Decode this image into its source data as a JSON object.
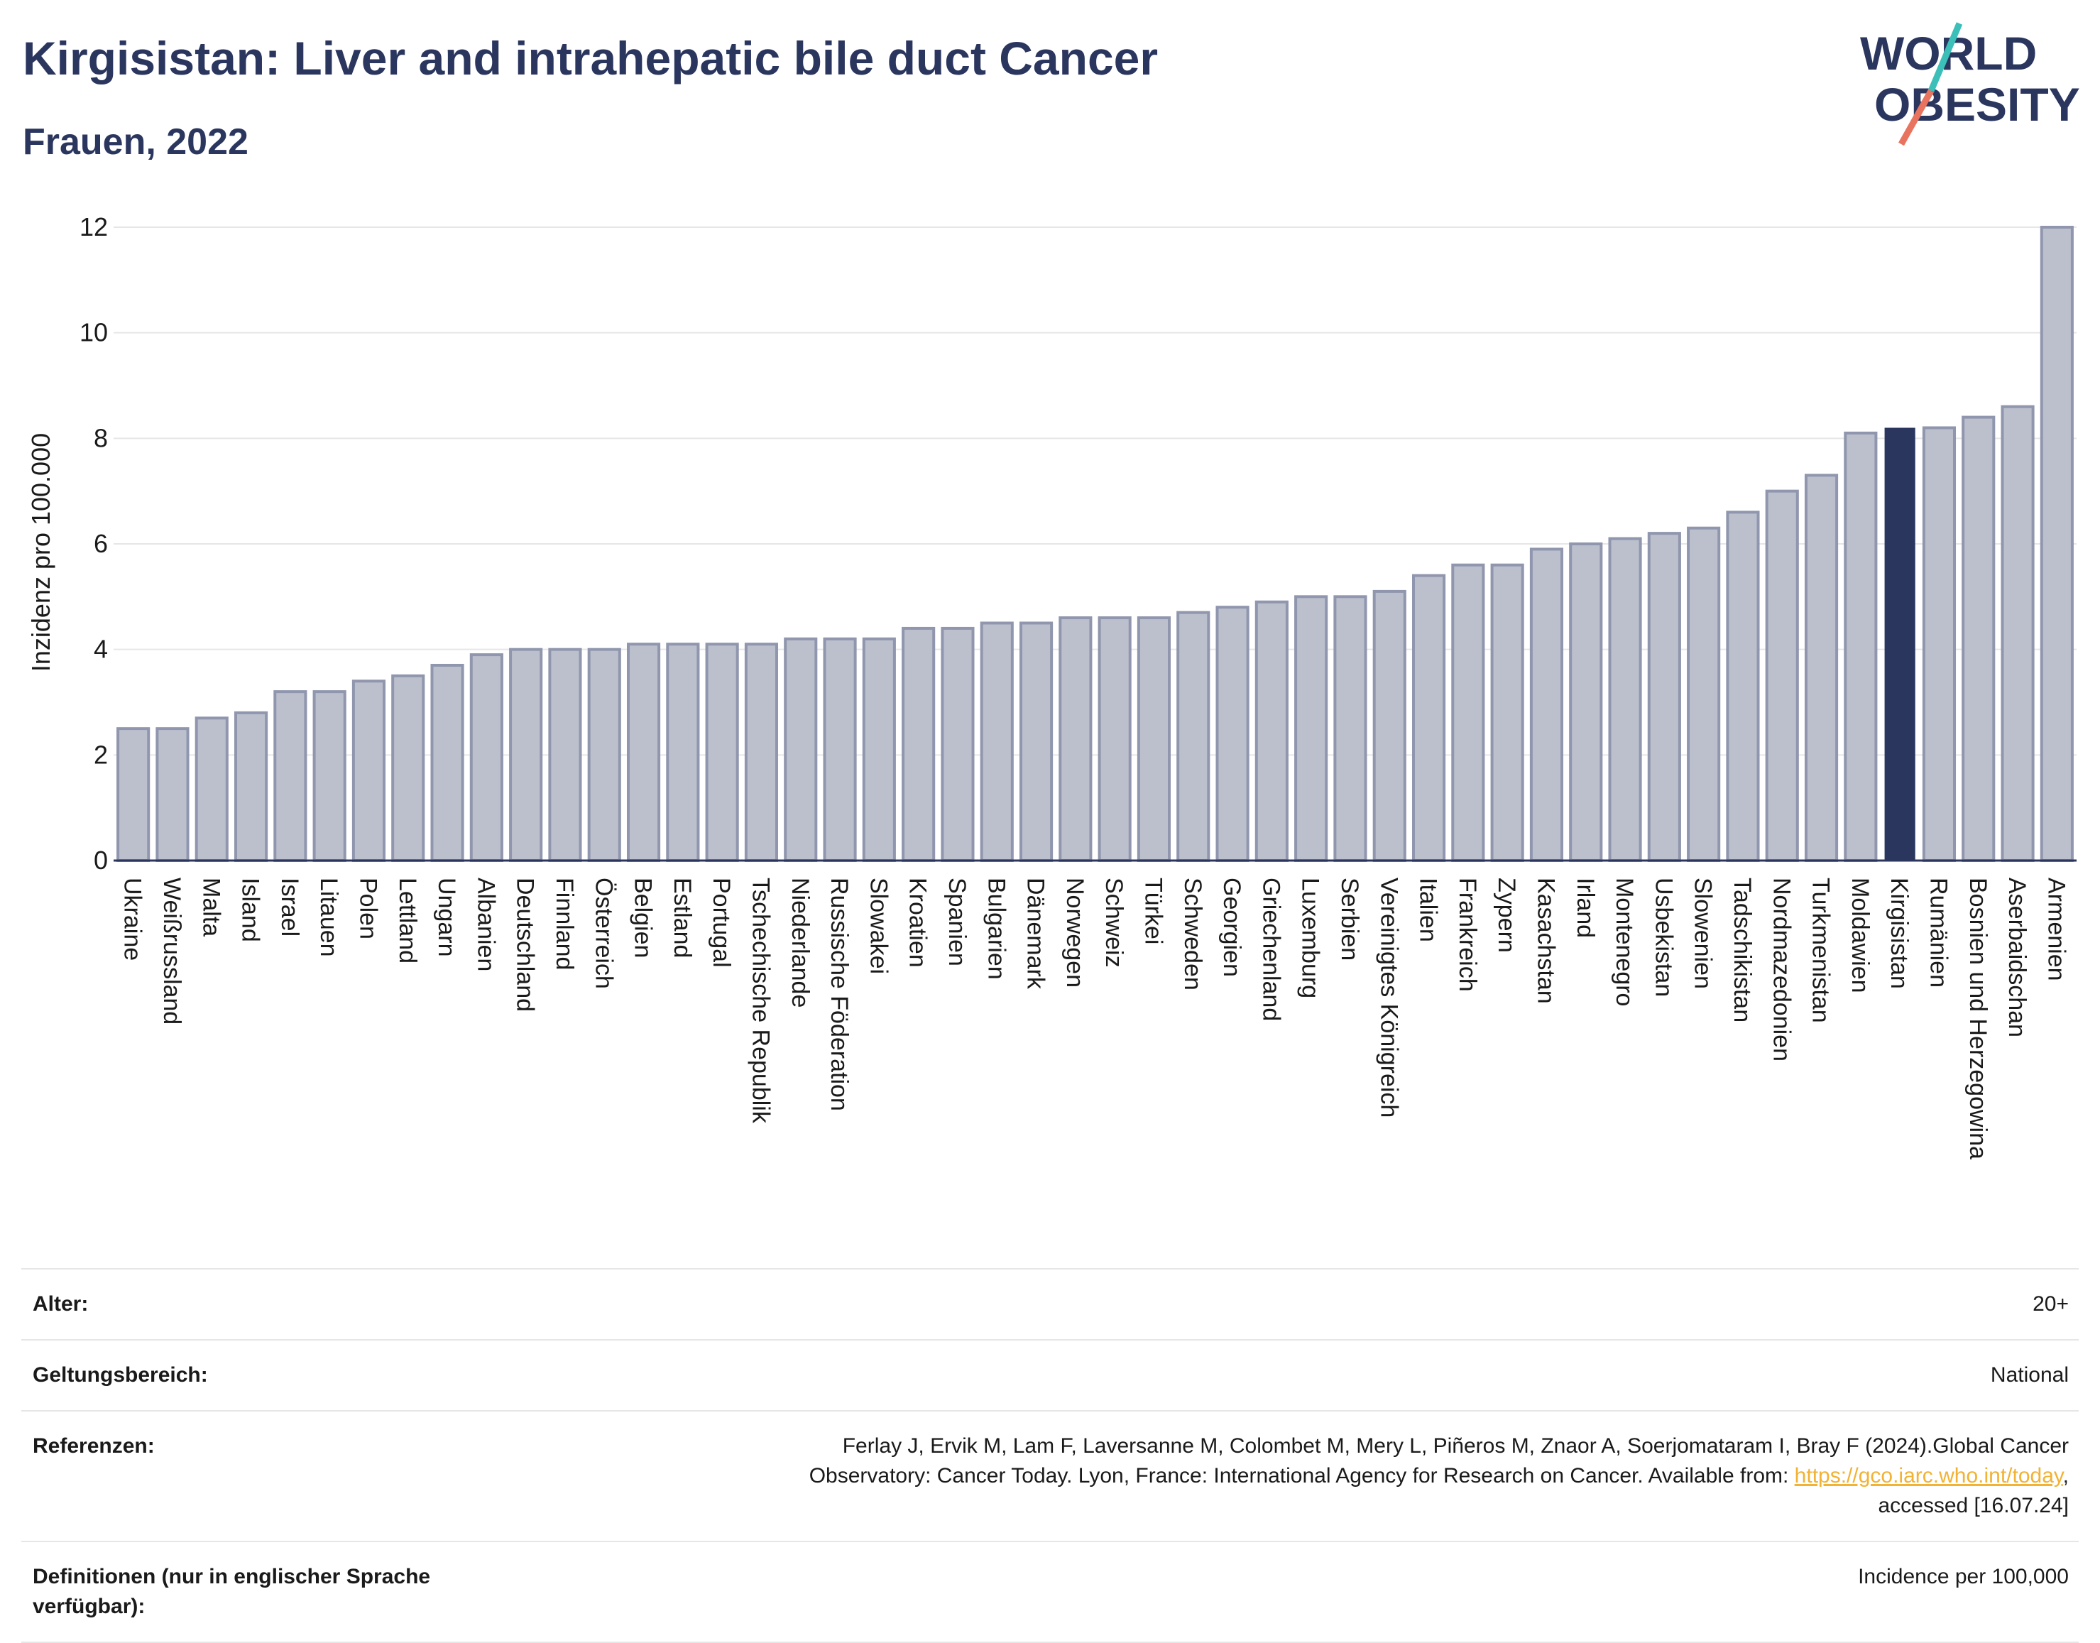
{
  "header": {
    "title": "Kirgisistan: Liver and intrahepatic bile duct Cancer",
    "subtitle": "Frauen, 2022"
  },
  "logo": {
    "line1": "WORLD",
    "line2": "OBESITY",
    "colors": {
      "text": "#2b365f",
      "slash_teal": "#3bbfb8",
      "slash_coral": "#e8735e"
    }
  },
  "colors": {
    "bar_default": "#bcc0cd",
    "bar_default_stroke": "#9096ad",
    "bar_highlight": "#2b365f",
    "grid": "#e6e6e6",
    "axis": "#2b365f"
  },
  "chart_data": {
    "type": "bar",
    "title": "",
    "xlabel": "",
    "ylabel": "Inzidenz pro 100.000",
    "ylim": [
      0,
      12
    ],
    "yticks": [
      0,
      2,
      4,
      6,
      8,
      10,
      12
    ],
    "grid": true,
    "highlight": "Kirgisistan",
    "categories": [
      "Ukraine",
      "Weißrussland",
      "Malta",
      "Island",
      "Israel",
      "Litauen",
      "Polen",
      "Lettland",
      "Ungarn",
      "Albanien",
      "Deutschland",
      "Finnland",
      "Österreich",
      "Belgien",
      "Estland",
      "Portugal",
      "Tschechische Republik",
      "Niederlande",
      "Russische Föderation",
      "Slowakei",
      "Kroatien",
      "Spanien",
      "Bulgarien",
      "Dänemark",
      "Norwegen",
      "Schweiz",
      "Türkei",
      "Schweden",
      "Georgien",
      "Griechenland",
      "Luxemburg",
      "Serbien",
      "Vereinigtes Königreich",
      "Italien",
      "Frankreich",
      "Zypern",
      "Kasachstan",
      "Irland",
      "Montenegro",
      "Usbekistan",
      "Slowenien",
      "Tadschikistan",
      "Nordmazedonien",
      "Turkmenistan",
      "Moldawien",
      "Kirgisistan",
      "Rumänien",
      "Bosnien und Herzegowina",
      "Aserbaidschan",
      "Armenien"
    ],
    "values": [
      2.5,
      2.5,
      2.7,
      2.8,
      3.2,
      3.2,
      3.4,
      3.5,
      3.7,
      3.9,
      4.0,
      4.0,
      4.0,
      4.1,
      4.1,
      4.1,
      4.1,
      4.2,
      4.2,
      4.2,
      4.4,
      4.4,
      4.5,
      4.5,
      4.6,
      4.6,
      4.6,
      4.7,
      4.8,
      4.9,
      5.0,
      5.0,
      5.1,
      5.4,
      5.6,
      5.6,
      5.9,
      6.0,
      6.1,
      6.2,
      6.3,
      6.6,
      7.0,
      7.3,
      8.1,
      8.2,
      8.2,
      8.4,
      8.6,
      12.0
    ]
  },
  "meta": {
    "age_label": "Alter:",
    "age_value": "20+",
    "scope_label": "Geltungsbereich:",
    "scope_value": "National",
    "refs_label": "Referenzen:",
    "refs_line1": "Ferlay J, Ervik M, Lam F, Laversanne M, Colombet M, Mery L, Piñeros M, Znaor A, Soerjomataram I, Bray F (2024).Global Cancer",
    "refs_line2_pre": "Observatory: Cancer Today. Lyon, France: International Agency for Research on Cancer. Available from: ",
    "refs_link": "https://gco.iarc.who.int/today",
    "refs_line2_post": ",",
    "refs_line3": "accessed [16.07.24]",
    "def_label": "Definitionen (nur in englischer Sprache verfügbar):",
    "def_value": "Incidence per 100,000"
  }
}
